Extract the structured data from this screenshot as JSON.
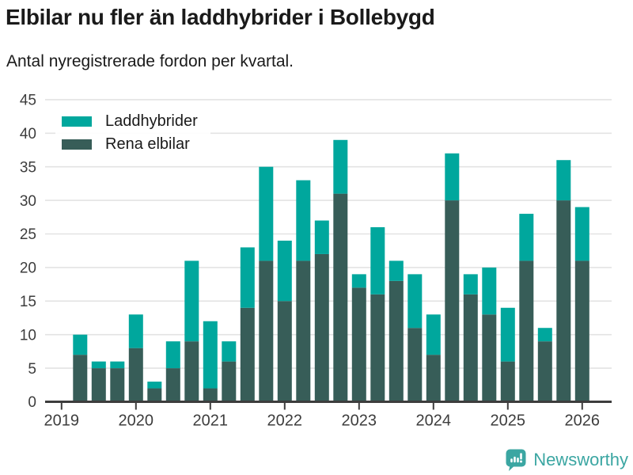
{
  "header": {
    "title": "Elbilar nu fler än laddhybrider i Bollebygd",
    "subtitle": "Antal nyregistrerade fordon per kvartal."
  },
  "chart_data": {
    "type": "bar",
    "stacked": true,
    "x": [
      "2019-Q2",
      "2019-Q3",
      "2019-Q4",
      "2020-Q1",
      "2020-Q2",
      "2020-Q3",
      "2020-Q4",
      "2021-Q1",
      "2021-Q2",
      "2021-Q3",
      "2021-Q4",
      "2022-Q1",
      "2022-Q2",
      "2022-Q3",
      "2022-Q4",
      "2023-Q1",
      "2023-Q2",
      "2023-Q3",
      "2023-Q4",
      "2024-Q1",
      "2024-Q2",
      "2024-Q3",
      "2024-Q4",
      "2025-Q1",
      "2025-Q2",
      "2025-Q3",
      "2025-Q4",
      "2026-Q1"
    ],
    "series": [
      {
        "name": "Laddhybrider",
        "color": "#00a79d",
        "values": [
          3,
          1,
          1,
          5,
          1,
          4,
          12,
          10,
          3,
          9,
          14,
          9,
          12,
          5,
          8,
          2,
          10,
          3,
          8,
          6,
          7,
          3,
          7,
          8,
          7,
          2,
          6,
          8
        ]
      },
      {
        "name": "Rena elbilar",
        "color": "#375d58",
        "values": [
          7,
          5,
          5,
          8,
          2,
          5,
          9,
          2,
          6,
          14,
          21,
          15,
          21,
          22,
          31,
          17,
          16,
          18,
          11,
          7,
          30,
          16,
          13,
          6,
          21,
          9,
          30,
          21
        ]
      }
    ],
    "stack_order_bottom_to_top": [
      "Rena elbilar",
      "Laddhybrider"
    ],
    "totals": [
      10,
      6,
      6,
      13,
      3,
      9,
      21,
      12,
      9,
      23,
      35,
      24,
      33,
      27,
      39,
      19,
      26,
      21,
      19,
      13,
      37,
      19,
      20,
      14,
      28,
      11,
      36,
      29
    ],
    "ylim": [
      0,
      45
    ],
    "yticks": [
      0,
      5,
      10,
      15,
      20,
      25,
      30,
      35,
      40,
      45
    ],
    "xticklabels": [
      "2019",
      "2020",
      "2021",
      "2022",
      "2023",
      "2024",
      "2025",
      "2026"
    ],
    "grid": "horizontal",
    "gridline_color": "#e3e3e3",
    "axis_color": "#3d3d3d",
    "legend_position": "top-left-inside"
  },
  "footer": {
    "brand": "Newsworthy",
    "brand_color": "#3ba6a2",
    "logo_icon": "newsworthy-speech-bubble-barchart-icon"
  }
}
